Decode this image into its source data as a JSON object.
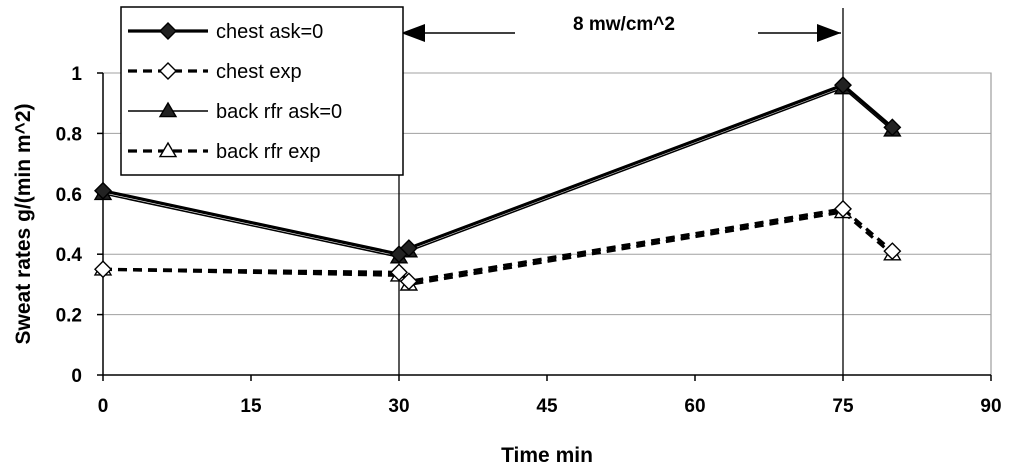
{
  "chart_data": {
    "type": "line",
    "xlabel": "Time min",
    "ylabel": "Sweat rates g/(min m^2)",
    "xlim": [
      0,
      90
    ],
    "ylim": [
      0,
      1
    ],
    "xticks": [
      "0",
      "15",
      "30",
      "45",
      "60",
      "75",
      "90"
    ],
    "yticks": [
      "0",
      "0.2",
      "0.4",
      "0.6",
      "0.8",
      "1"
    ],
    "grid": "horizontal",
    "legend_position": "top-left",
    "annotation": {
      "text": "8 mw/cm^2",
      "x_start": 30,
      "x_end": 75
    },
    "vlines": [
      30,
      75
    ],
    "series": [
      {
        "name": "chest ask=0",
        "style": "solid-thick",
        "marker": "filled-diamond",
        "x": [
          0,
          30,
          31,
          75,
          80
        ],
        "y": [
          0.61,
          0.4,
          0.42,
          0.96,
          0.82
        ]
      },
      {
        "name": "chest exp",
        "style": "dashed",
        "marker": "open-diamond",
        "x": [
          0,
          30,
          31,
          75,
          80
        ],
        "y": [
          0.35,
          0.34,
          0.31,
          0.55,
          0.41
        ]
      },
      {
        "name": "back rfr ask=0",
        "style": "solid-thin",
        "marker": "filled-triangle",
        "x": [
          0,
          30,
          31,
          75,
          80
        ],
        "y": [
          0.6,
          0.39,
          0.41,
          0.95,
          0.81
        ]
      },
      {
        "name": "back rfr exp",
        "style": "dashed",
        "marker": "open-triangle",
        "x": [
          0,
          30,
          31,
          75,
          80
        ],
        "y": [
          0.35,
          0.33,
          0.3,
          0.54,
          0.4
        ]
      }
    ]
  }
}
